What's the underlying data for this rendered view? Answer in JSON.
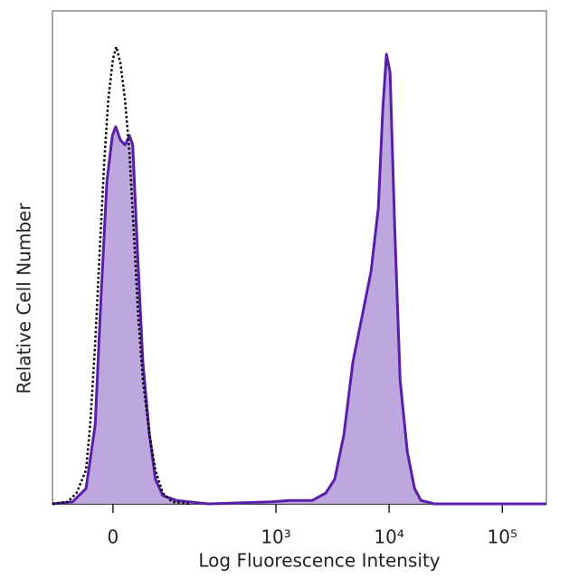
{
  "chart_data": {
    "type": "histogram-overlay",
    "xlabel": "Log Fluorescence Intensity",
    "ylabel": "Relative Cell Number",
    "xscale": "asinh",
    "xlim": [
      -114,
      245000
    ],
    "ylim": [
      0,
      100
    ],
    "xticks": [
      0,
      {
        "value": 1000,
        "label": "10³"
      },
      {
        "value": 10000,
        "label": "10⁴"
      },
      {
        "value": 100000,
        "label": "10⁵"
      }
    ],
    "series": [
      {
        "color": "#5a1fa8",
        "fill": "#b79ddc",
        "style": "solid",
        "x": [
          -114,
          -67,
          -42,
          -27,
          -18,
          -9,
          -1,
          4,
          11,
          18,
          25,
          30,
          38,
          47,
          59,
          71,
          87,
          122,
          247,
          913,
          1320,
          2090,
          2760,
          3310,
          3990,
          4790,
          5760,
          6930,
          8030,
          8800,
          9480,
          10200,
          11200,
          12500,
          14500,
          16800,
          19100,
          25100,
          245000
        ],
        "values": [
          0,
          0.4,
          3.1,
          16.0,
          41.7,
          65.5,
          74.7,
          76.5,
          73.8,
          72.8,
          74.7,
          72.8,
          50.8,
          28.8,
          14.1,
          5.0,
          1.7,
          0.7,
          0,
          0.4,
          0.7,
          0.7,
          2.2,
          5.0,
          14.1,
          28.8,
          38.0,
          47.2,
          60.0,
          80.2,
          91.2,
          87.5,
          56.3,
          25.1,
          10.5,
          3.1,
          0.7,
          0,
          0
        ]
      },
      {
        "color": "#000000",
        "style": "dotted",
        "x": [
          -114,
          -77,
          -59,
          -42,
          -35,
          -27,
          -20,
          -13,
          -7,
          0,
          5,
          11,
          18,
          25,
          32,
          39,
          47,
          59,
          71,
          87,
          110,
          166
        ],
        "values": [
          0,
          0.4,
          2.2,
          6.8,
          16.0,
          32.5,
          50.8,
          69.2,
          82.0,
          90.3,
          92.7,
          89.4,
          82.0,
          71.0,
          54.5,
          38.0,
          25.1,
          14.1,
          6.8,
          2.2,
          0.4,
          0
        ]
      }
    ]
  }
}
